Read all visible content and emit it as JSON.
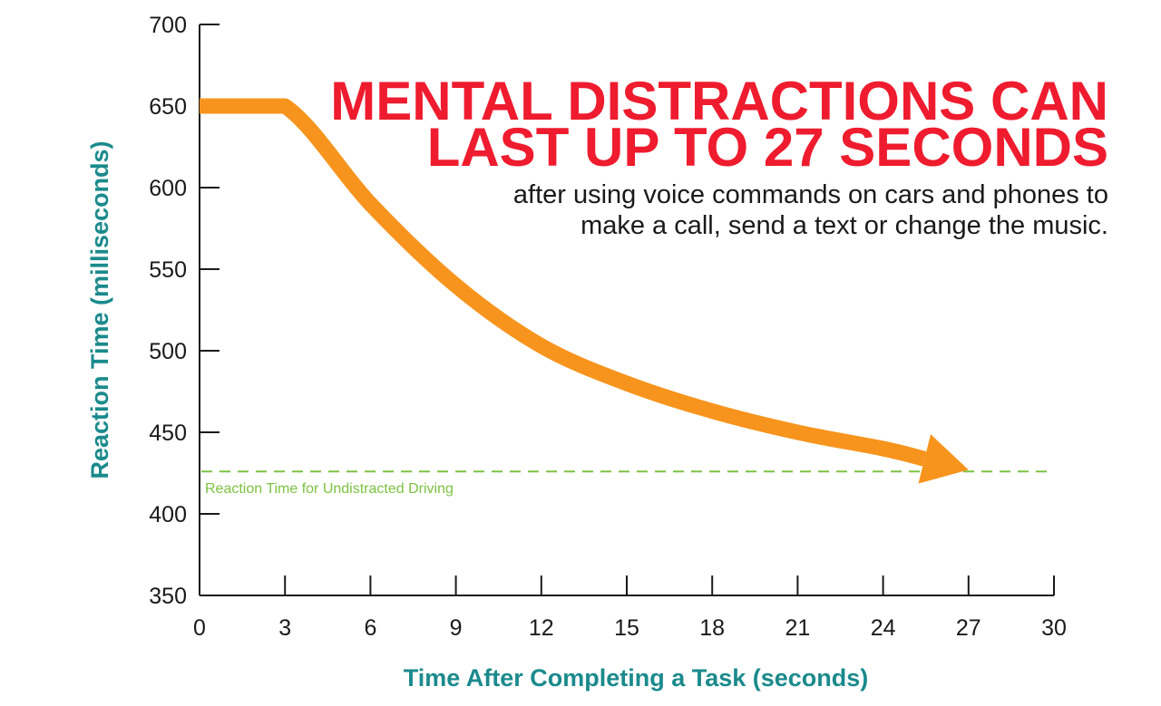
{
  "headline": {
    "line1": "MENTAL DISTRACTIONS CAN",
    "line2": "LAST UP TO 27 SECONDS",
    "subtext_line1": "after using voice commands on cars and phones to",
    "subtext_line2": "make a call, send a text or change the music."
  },
  "colors": {
    "headline": "#ee1c2e",
    "axis_title": "#1b8a8c",
    "series": "#f7941d",
    "reference": "#7dc242",
    "axis": "#1a1a1a"
  },
  "chart_data": {
    "type": "line",
    "xlabel": "Time After Completing a Task (seconds)",
    "ylabel": "Reaction Time (milliseconds)",
    "xlim": [
      0,
      30
    ],
    "ylim": [
      350,
      700
    ],
    "x_ticks": [
      0,
      3,
      6,
      9,
      12,
      15,
      18,
      21,
      24,
      27,
      30
    ],
    "y_ticks": [
      350,
      400,
      450,
      500,
      550,
      600,
      650,
      700
    ],
    "grid": false,
    "series": [
      {
        "x": [
          0,
          3,
          6,
          9,
          12,
          15,
          18,
          21,
          24,
          27
        ],
        "y": [
          650,
          650,
          590,
          540,
          503,
          480,
          463,
          450,
          440,
          427
        ]
      }
    ],
    "reference_line": {
      "y": 426,
      "label": "Reaction Time for Undistracted Driving",
      "style": "dashed"
    },
    "arrow_end": true
  }
}
